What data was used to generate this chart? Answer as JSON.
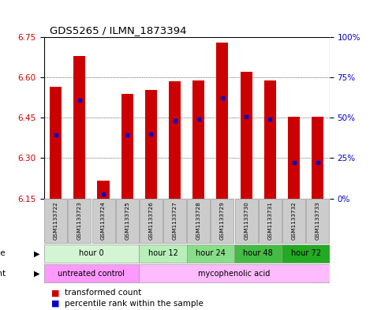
{
  "title": "GDS5265 / ILMN_1873394",
  "samples": [
    "GSM1133722",
    "GSM1133723",
    "GSM1133724",
    "GSM1133725",
    "GSM1133726",
    "GSM1133727",
    "GSM1133728",
    "GSM1133729",
    "GSM1133730",
    "GSM1133731",
    "GSM1133732",
    "GSM1133733"
  ],
  "bar_top": [
    6.565,
    6.68,
    6.215,
    6.54,
    6.555,
    6.585,
    6.59,
    6.73,
    6.62,
    6.59,
    6.455,
    6.455
  ],
  "bar_bottom": 6.15,
  "percentile_values": [
    6.385,
    6.515,
    6.165,
    6.385,
    6.39,
    6.44,
    6.445,
    6.525,
    6.455,
    6.445,
    6.285,
    6.285
  ],
  "ylim_left": [
    6.15,
    6.75
  ],
  "yticks_left": [
    6.15,
    6.3,
    6.45,
    6.6,
    6.75
  ],
  "yticks_right": [
    0,
    25,
    50,
    75,
    100
  ],
  "ytick_labels_right": [
    "0%",
    "25%",
    "50%",
    "75%",
    "100%"
  ],
  "bar_color": "#cc0000",
  "percentile_color": "#0000cc",
  "label_color_left": "#cc0000",
  "label_color_right": "#0000cc",
  "title_color": "#000000",
  "bg_color": "#ffffff",
  "time_groups": [
    {
      "label": "hour 0",
      "start": 0,
      "end": 4,
      "color": "#d4f5d4"
    },
    {
      "label": "hour 12",
      "start": 4,
      "end": 6,
      "color": "#b8eeb8"
    },
    {
      "label": "hour 24",
      "start": 6,
      "end": 8,
      "color": "#88dd88"
    },
    {
      "label": "hour 48",
      "start": 8,
      "end": 10,
      "color": "#44bb44"
    },
    {
      "label": "hour 72",
      "start": 10,
      "end": 12,
      "color": "#22aa22"
    }
  ],
  "agent_groups": [
    {
      "label": "untreated control",
      "start": 0,
      "end": 4,
      "color": "#ff99ff"
    },
    {
      "label": "mycophenolic acid",
      "start": 4,
      "end": 12,
      "color": "#ffbbff"
    }
  ],
  "legend_items": [
    {
      "label": "transformed count",
      "color": "#cc0000"
    },
    {
      "label": "percentile rank within the sample",
      "color": "#0000cc"
    }
  ]
}
